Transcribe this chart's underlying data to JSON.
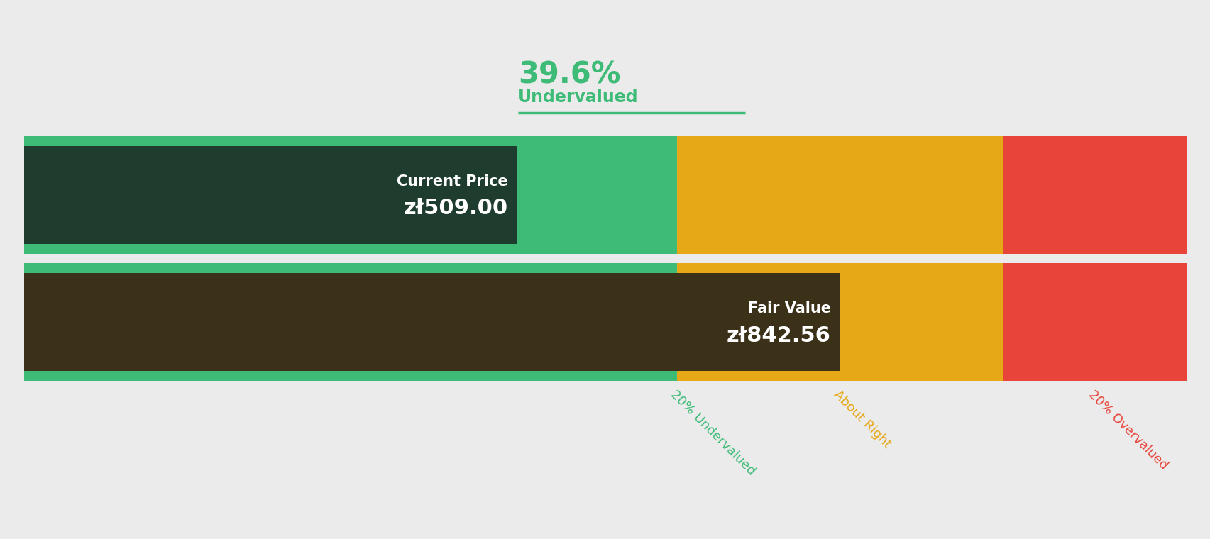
{
  "title_percentage": "39.6%",
  "title_label": "Undervalued",
  "title_color": "#3dbb77",
  "underline_color": "#3dbb77",
  "background_color": "#ebebeb",
  "current_price_label": "Current Price",
  "current_price_value": "zł509.00",
  "current_price": 509.0,
  "fair_value_label": "Fair Value",
  "fair_value_value": "zł842.56",
  "fair_value": 842.56,
  "segment_colors": [
    "#3dbb77",
    "#e6a817",
    "#e8443a"
  ],
  "segment_labels": [
    "20% Undervalued",
    "About Right",
    "20% Overvalued"
  ],
  "segment_label_colors": [
    "#3dbb77",
    "#e6a817",
    "#e8443a"
  ],
  "dark_green_box_color": "#1e3d2f",
  "fair_value_box_color": "#3b3018",
  "chart_max_price": 1200.0
}
